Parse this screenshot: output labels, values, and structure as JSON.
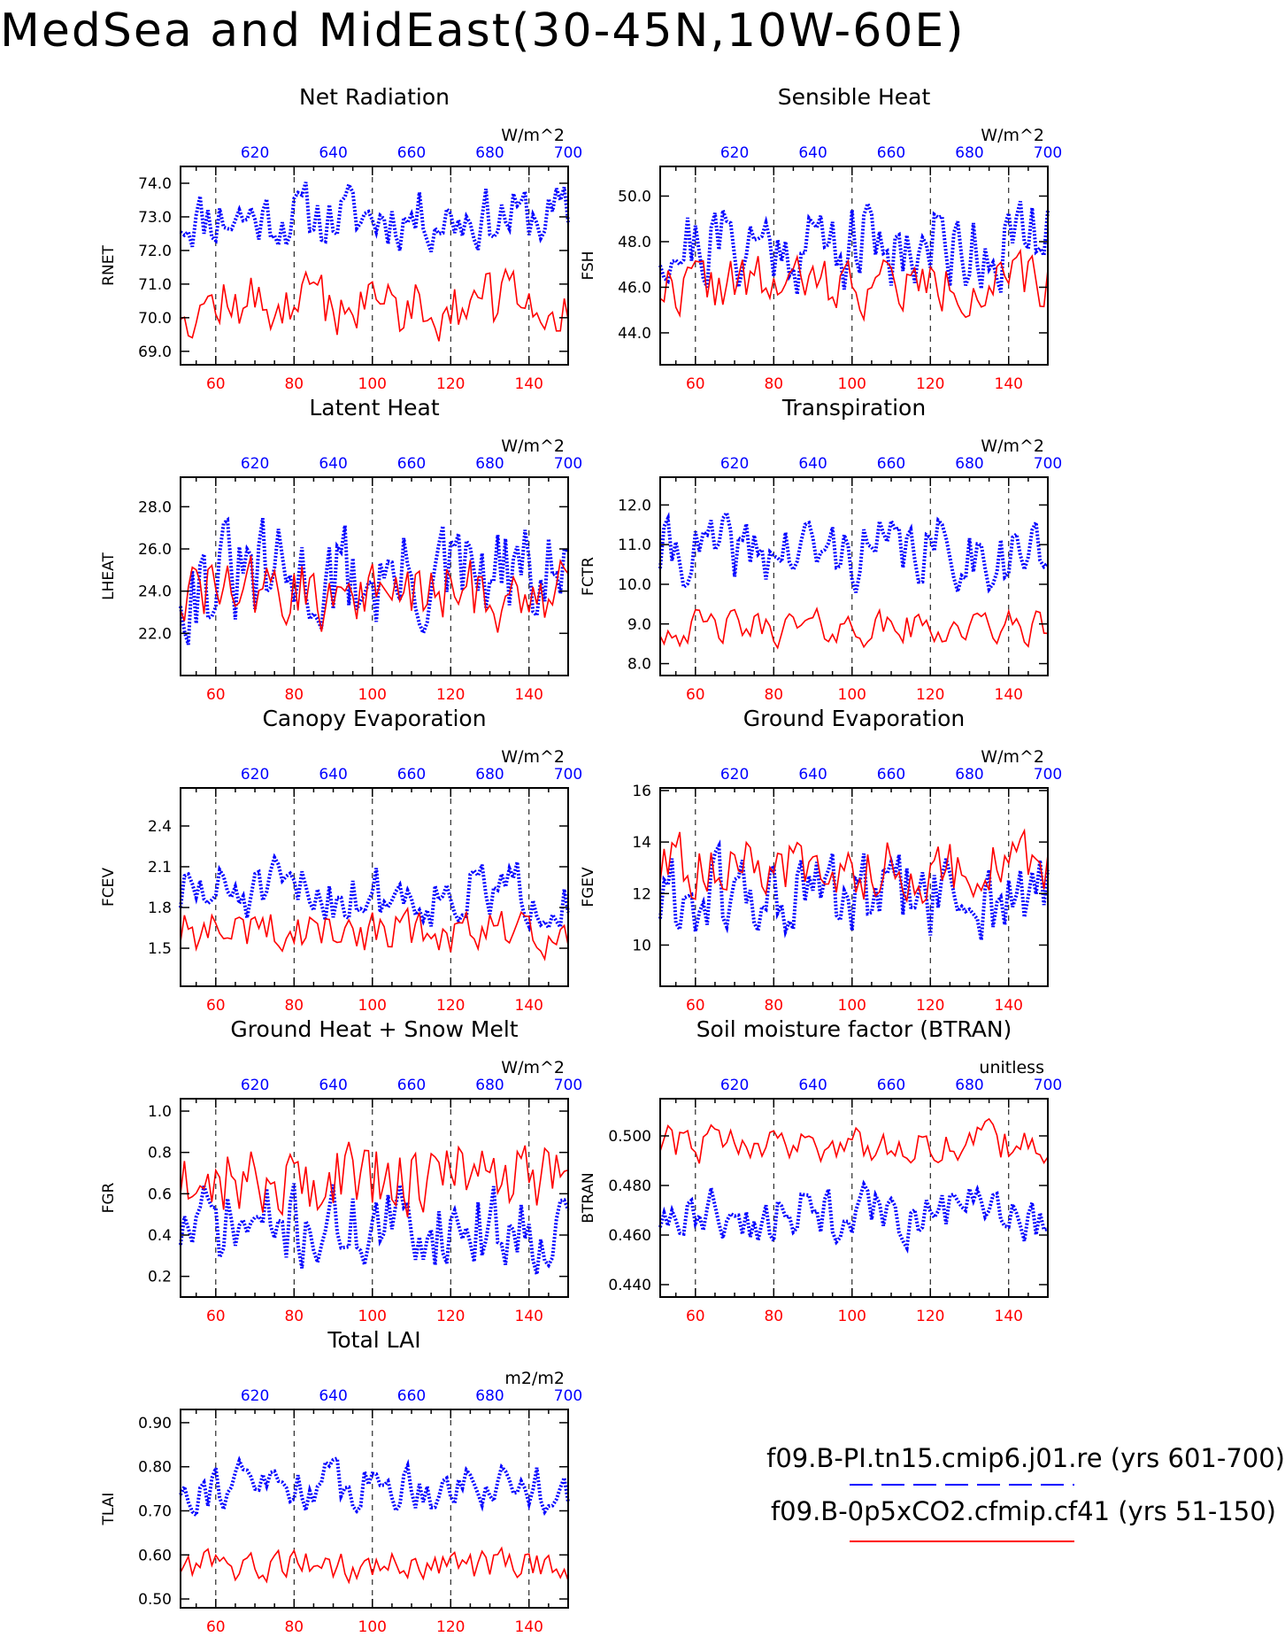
{
  "page": {
    "title": "MedSea and MidEast(30-45N,10W-60E)"
  },
  "colors": {
    "control": "#0000ff",
    "experiment": "#ff0000",
    "axis": "#000000",
    "grid": "#000000"
  },
  "legend": {
    "control_label": "f09.B-PI.tn15.cmip6.j01.re (yrs 601-700)",
    "experiment_label": "f09.B-0p5xCO2.cfmip.cf41 (yrs 51-150)",
    "control_style": "blue dashed line",
    "experiment_style": "red solid line"
  },
  "chart_data": [
    {
      "type": "line",
      "title": "Net Radiation",
      "ylabel": "RNET",
      "units": "W/m^2",
      "ylim": [
        68.6,
        74.5
      ],
      "yticks": [
        69.0,
        70.0,
        71.0,
        72.0,
        73.0,
        74.0
      ],
      "ytick_labels": [
        "69.0",
        "70.0",
        "71.0",
        "72.0",
        "73.0",
        "74.0"
      ],
      "x_bottom": {
        "range": [
          51,
          150
        ],
        "ticks": [
          60,
          80,
          100,
          120,
          140
        ]
      },
      "x_top": {
        "range": [
          601,
          700
        ],
        "ticks": [
          620,
          640,
          660,
          680,
          700
        ]
      },
      "grid": "vertical dashed at x = 60, 80, 100, 120, 140",
      "series": [
        {
          "role": "control",
          "style": "dotted",
          "mean": 73.0,
          "amp": 0.75,
          "seed": 11
        },
        {
          "role": "experiment",
          "style": "solid",
          "mean": 70.4,
          "amp": 0.75,
          "seed": 12
        }
      ]
    },
    {
      "type": "line",
      "title": "Sensible Heat",
      "ylabel": "FSH",
      "units": "W/m^2",
      "ylim": [
        42.6,
        51.3
      ],
      "yticks": [
        44.0,
        46.0,
        48.0,
        50.0
      ],
      "ytick_labels": [
        "44.0",
        "46.0",
        "48.0",
        "50.0"
      ],
      "x_bottom": {
        "range": [
          51,
          150
        ],
        "ticks": [
          60,
          80,
          100,
          120,
          140
        ]
      },
      "x_top": {
        "range": [
          601,
          700
        ],
        "ticks": [
          620,
          640,
          660,
          680,
          700
        ]
      },
      "grid": "vertical dashed at x = 60, 80, 100, 120, 140",
      "series": [
        {
          "role": "control",
          "style": "dotted",
          "mean": 47.9,
          "amp": 1.6,
          "seed": 21
        },
        {
          "role": "experiment",
          "style": "solid",
          "mean": 46.1,
          "amp": 1.0,
          "seed": 22
        }
      ]
    },
    {
      "type": "line",
      "title": "Latent Heat",
      "ylabel": "LHEAT",
      "units": "W/m^2",
      "ylim": [
        20.0,
        29.4
      ],
      "yticks": [
        22.0,
        24.0,
        26.0,
        28.0
      ],
      "ytick_labels": [
        "22.0",
        "24.0",
        "26.0",
        "28.0"
      ],
      "x_bottom": {
        "range": [
          51,
          150
        ],
        "ticks": [
          60,
          80,
          100,
          120,
          140
        ]
      },
      "x_top": {
        "range": [
          601,
          700
        ],
        "ticks": [
          620,
          640,
          660,
          680,
          700
        ]
      },
      "grid": "vertical dashed at x = 60, 80, 100, 120, 140",
      "series": [
        {
          "role": "control",
          "style": "dotted",
          "mean": 24.5,
          "amp": 2.1,
          "seed": 31
        },
        {
          "role": "experiment",
          "style": "solid",
          "mean": 23.9,
          "amp": 1.4,
          "seed": 32
        }
      ]
    },
    {
      "type": "line",
      "title": "Transpiration",
      "ylabel": "FCTR",
      "units": "W/m^2",
      "ylim": [
        7.7,
        12.7
      ],
      "yticks": [
        8.0,
        9.0,
        10.0,
        11.0,
        12.0
      ],
      "ytick_labels": [
        "8.0",
        "9.0",
        "10.0",
        "11.0",
        "12.0"
      ],
      "x_bottom": {
        "range": [
          51,
          150
        ],
        "ticks": [
          60,
          80,
          100,
          120,
          140
        ]
      },
      "x_top": {
        "range": [
          601,
          700
        ],
        "ticks": [
          620,
          640,
          660,
          680,
          700
        ]
      },
      "grid": "vertical dashed at x = 60, 80, 100, 120, 140",
      "series": [
        {
          "role": "control",
          "style": "dotted",
          "mean": 10.8,
          "amp": 0.7,
          "seed": 41
        },
        {
          "role": "experiment",
          "style": "solid",
          "mean": 8.9,
          "amp": 0.35,
          "seed": 42
        }
      ]
    },
    {
      "type": "line",
      "title": "Canopy Evaporation",
      "ylabel": "FCEV",
      "units": "W/m^2",
      "ylim": [
        1.22,
        2.68
      ],
      "yticks": [
        1.5,
        1.8,
        2.1,
        2.4
      ],
      "ytick_labels": [
        "1.5",
        "1.8",
        "2.1",
        "2.4"
      ],
      "x_bottom": {
        "range": [
          51,
          150
        ],
        "ticks": [
          60,
          80,
          100,
          120,
          140
        ]
      },
      "x_top": {
        "range": [
          601,
          700
        ],
        "ticks": [
          620,
          640,
          660,
          680,
          700
        ]
      },
      "grid": "vertical dashed at x = 60, 80, 100, 120, 140",
      "series": [
        {
          "role": "control",
          "style": "dotted",
          "mean": 1.9,
          "amp": 0.18,
          "seed": 51
        },
        {
          "role": "experiment",
          "style": "solid",
          "mean": 1.62,
          "amp": 0.13,
          "seed": 52
        }
      ]
    },
    {
      "type": "line",
      "title": "Ground Evaporation",
      "ylabel": "FGEV",
      "units": "W/m^2",
      "ylim": [
        8.4,
        16.1
      ],
      "yticks": [
        10,
        12,
        14,
        16
      ],
      "ytick_labels": [
        "10",
        "12",
        "14",
        "16"
      ],
      "x_bottom": {
        "range": [
          51,
          150
        ],
        "ticks": [
          60,
          80,
          100,
          120,
          140
        ]
      },
      "x_top": {
        "range": [
          601,
          700
        ],
        "ticks": [
          620,
          640,
          660,
          680,
          700
        ]
      },
      "grid": "vertical dashed at x = 60, 80, 100, 120, 140",
      "series": [
        {
          "role": "control",
          "style": "dotted",
          "mean": 11.8,
          "amp": 1.4,
          "seed": 61
        },
        {
          "role": "experiment",
          "style": "solid",
          "mean": 13.0,
          "amp": 1.0,
          "seed": 62
        }
      ]
    },
    {
      "type": "line",
      "title": "Ground Heat + Snow Melt",
      "ylabel": "FGR",
      "units": "W/m^2",
      "ylim": [
        0.1,
        1.06
      ],
      "yticks": [
        0.2,
        0.4,
        0.6,
        0.8,
        1.0
      ],
      "ytick_labels": [
        "0.2",
        "0.4",
        "0.6",
        "0.8",
        "1.0"
      ],
      "x_bottom": {
        "range": [
          51,
          150
        ],
        "ticks": [
          60,
          80,
          100,
          120,
          140
        ]
      },
      "x_top": {
        "range": [
          601,
          700
        ],
        "ticks": [
          620,
          640,
          660,
          680,
          700
        ]
      },
      "grid": "vertical dashed at x = 60, 80, 100, 120, 140",
      "series": [
        {
          "role": "control",
          "style": "dotted",
          "mean": 0.44,
          "amp": 0.16,
          "seed": 71
        },
        {
          "role": "experiment",
          "style": "solid",
          "mean": 0.68,
          "amp": 0.15,
          "seed": 72
        }
      ]
    },
    {
      "type": "line",
      "title": "Soil moisture factor (BTRAN)",
      "ylabel": "BTRAN",
      "units": "unitless",
      "ylim": [
        0.435,
        0.515
      ],
      "yticks": [
        0.44,
        0.46,
        0.48,
        0.5
      ],
      "ytick_labels": [
        "0.440",
        "0.460",
        "0.480",
        "0.500"
      ],
      "x_bottom": {
        "range": [
          51,
          150
        ],
        "ticks": [
          60,
          80,
          100,
          120,
          140
        ]
      },
      "x_top": {
        "range": [
          601,
          700
        ],
        "ticks": [
          620,
          640,
          660,
          680,
          700
        ]
      },
      "grid": "vertical dashed at x = 60, 80, 100, 120, 140",
      "series": [
        {
          "role": "control",
          "style": "dotted",
          "mean": 0.468,
          "amp": 0.009,
          "seed": 81
        },
        {
          "role": "experiment",
          "style": "solid",
          "mean": 0.497,
          "amp": 0.006,
          "seed": 82
        }
      ]
    },
    {
      "type": "line",
      "title": "Total LAI",
      "ylabel": "TLAI",
      "units": "m2/m2",
      "ylim": [
        0.48,
        0.93
      ],
      "yticks": [
        0.5,
        0.6,
        0.7,
        0.8,
        0.9
      ],
      "ytick_labels": [
        "0.50",
        "0.60",
        "0.70",
        "0.80",
        "0.90"
      ],
      "x_bottom": {
        "range": [
          51,
          150
        ],
        "ticks": [
          60,
          80,
          100,
          120,
          140
        ]
      },
      "x_top": {
        "range": [
          601,
          700
        ],
        "ticks": [
          620,
          640,
          660,
          680,
          700
        ]
      },
      "grid": "vertical dashed at x = 60, 80, 100, 120, 140",
      "series": [
        {
          "role": "control",
          "style": "dotted",
          "mean": 0.76,
          "amp": 0.045,
          "seed": 91
        },
        {
          "role": "experiment",
          "style": "solid",
          "mean": 0.575,
          "amp": 0.028,
          "seed": 92
        }
      ]
    }
  ]
}
